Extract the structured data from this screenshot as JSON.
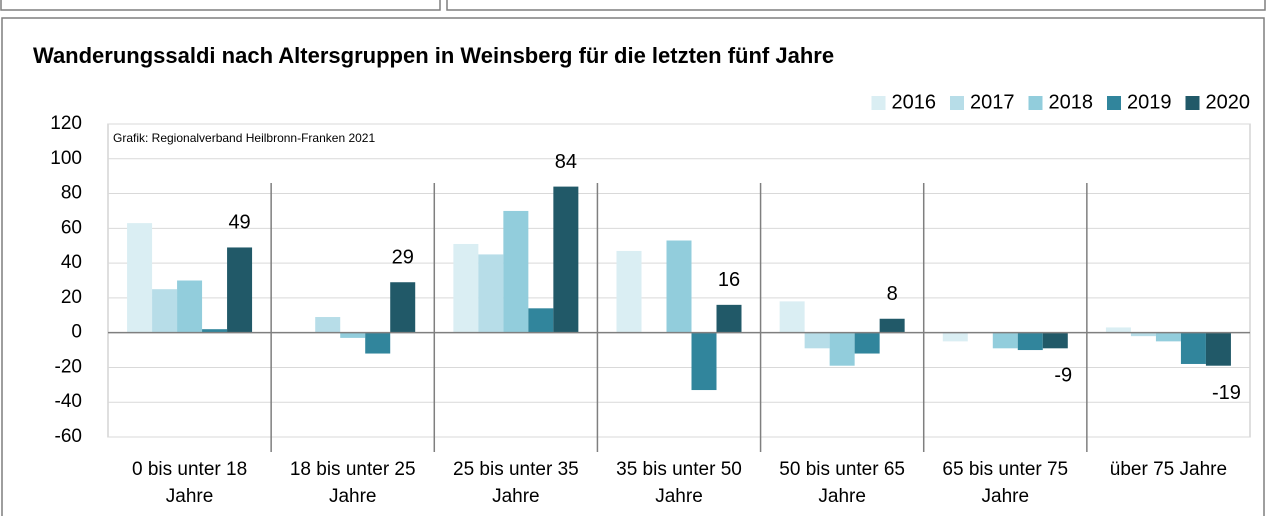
{
  "chart_data": {
    "type": "bar",
    "title": "Wanderungssaldi nach Altersgruppen in Weinsberg für die letzten fünf Jahre",
    "note": "Grafik: Regionalverband Heilbronn-Franken 2021",
    "categories": [
      [
        "0 bis unter 18",
        "Jahre"
      ],
      [
        "18 bis unter 25",
        "Jahre"
      ],
      [
        "25 bis unter 35",
        "Jahre"
      ],
      [
        "35 bis unter 50",
        "Jahre"
      ],
      [
        "50 bis unter 65",
        "Jahre"
      ],
      [
        "65 bis unter 75",
        "Jahre"
      ],
      [
        "über 75 Jahre"
      ]
    ],
    "series": [
      {
        "name": "2016",
        "color": "#daeef3",
        "values": [
          63,
          0,
          51,
          47,
          18,
          -5,
          3
        ]
      },
      {
        "name": "2017",
        "color": "#b7dde8",
        "values": [
          25,
          9,
          45,
          0,
          -9,
          0,
          -2
        ]
      },
      {
        "name": "2018",
        "color": "#92cddc",
        "values": [
          30,
          -3,
          70,
          53,
          -19,
          -9,
          -5
        ]
      },
      {
        "name": "2019",
        "color": "#31859c",
        "values": [
          2,
          -12,
          14,
          -33,
          -12,
          -10,
          -18
        ]
      },
      {
        "name": "2020",
        "color": "#215968",
        "values": [
          49,
          29,
          84,
          16,
          8,
          -9,
          -19
        ],
        "data_labels": true
      }
    ],
    "ylim": [
      -60,
      120
    ],
    "yticks": [
      -60,
      -40,
      -20,
      0,
      20,
      40,
      60,
      80,
      100,
      120
    ],
    "grid": true,
    "legend": "top-right"
  }
}
